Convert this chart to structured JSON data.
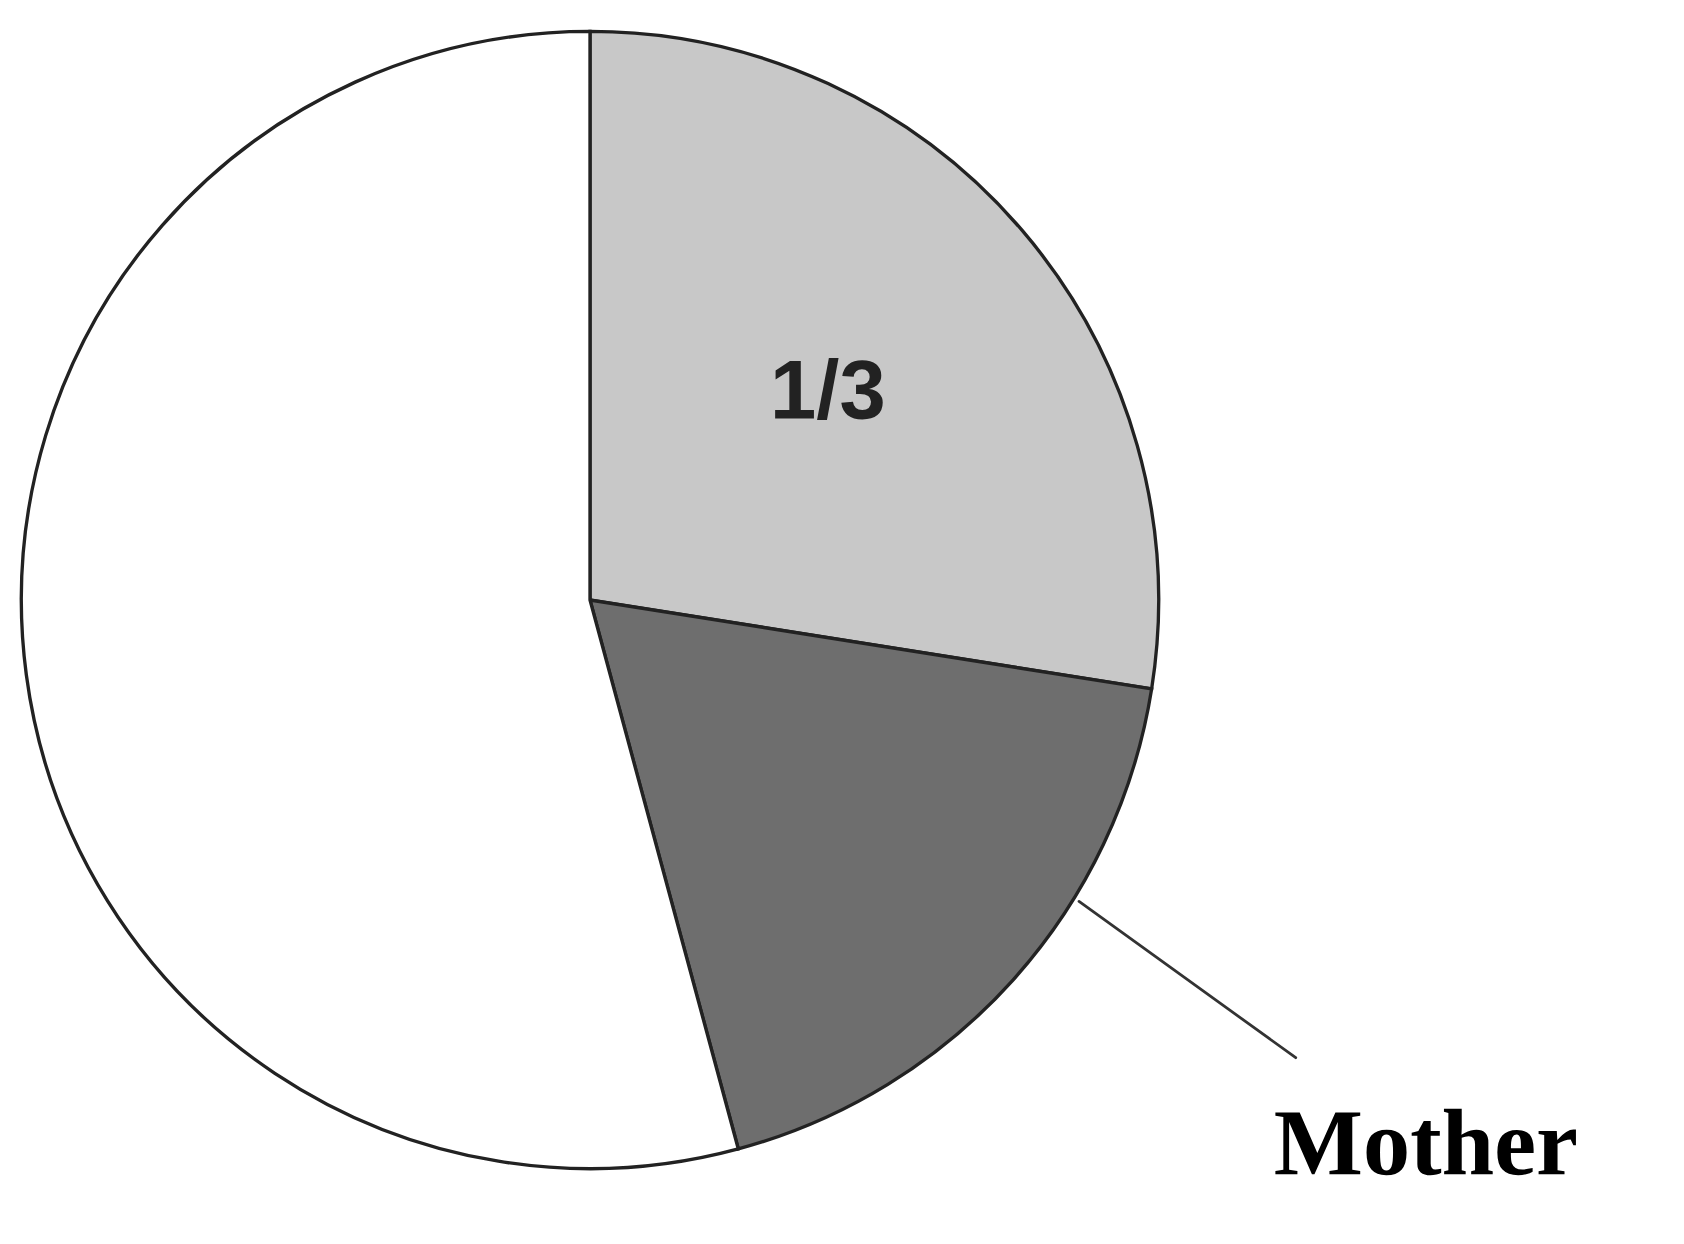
{
  "chart_data": {
    "type": "pie",
    "categories": [
      null,
      "Mother",
      null
    ],
    "values": [
      27.5,
      18.3,
      54.2
    ],
    "colors": [
      "#c8c8c8",
      "#6e6e6e",
      "#ffffff"
    ],
    "annotations": [
      "1/3"
    ],
    "legend": false
  }
}
